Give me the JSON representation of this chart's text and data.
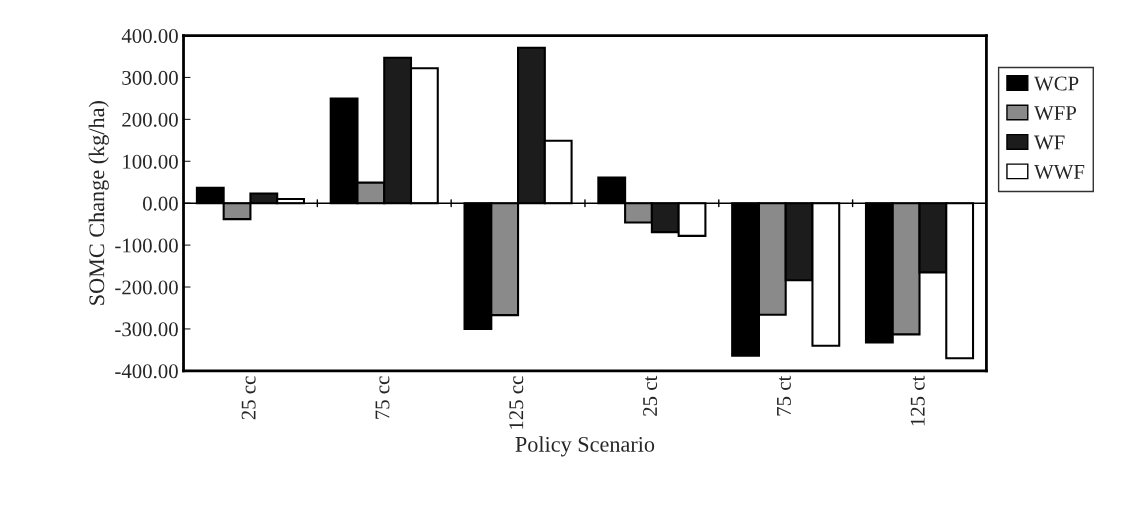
{
  "chart_data": {
    "type": "bar",
    "xlabel": "Policy Scenario",
    "ylabel": "SOMC Change (kg/ha)",
    "categories": [
      "25 cc",
      "75 cc",
      "125 cc",
      "25 ct",
      "75 ct",
      "125 ct"
    ],
    "series": [
      {
        "name": "WCP",
        "color": "#000000",
        "values": [
          37,
          250,
          -300,
          61,
          -364,
          -332
        ]
      },
      {
        "name": "WFP",
        "color": "#8a8a8a",
        "values": [
          -38,
          49,
          -267,
          -46,
          -266,
          -313
        ]
      },
      {
        "name": "WF",
        "color": "#1c1c1c",
        "values": [
          23,
          347,
          371,
          -69,
          -184,
          -165
        ]
      },
      {
        "name": "WWF",
        "color": "#ffffff",
        "values": [
          10,
          322,
          149,
          -78,
          -340,
          -370
        ]
      }
    ],
    "ylim": [
      -400,
      400
    ],
    "yticks": [
      {
        "value": -400,
        "label": "-400.00"
      },
      {
        "value": -300,
        "label": "-300.00"
      },
      {
        "value": -200,
        "label": "-200.00"
      },
      {
        "value": -100,
        "label": "-100.00"
      },
      {
        "value": 0,
        "label": "0.00"
      },
      {
        "value": 100,
        "label": "100.00"
      },
      {
        "value": 200,
        "label": "200.00"
      },
      {
        "value": 300,
        "label": "300.00"
      },
      {
        "value": 400,
        "label": "400.00"
      }
    ],
    "legend": "right"
  }
}
